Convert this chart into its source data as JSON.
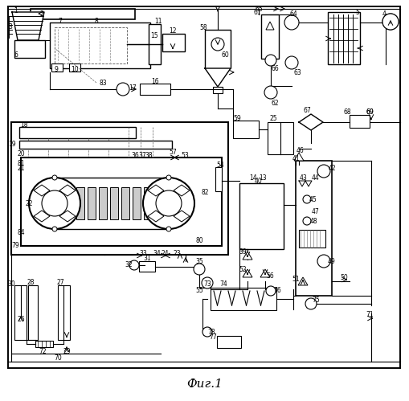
{
  "title": "Фиг.1",
  "bg_color": "#ffffff",
  "fig_width": 5.1,
  "fig_height": 4.99,
  "dpi": 100
}
